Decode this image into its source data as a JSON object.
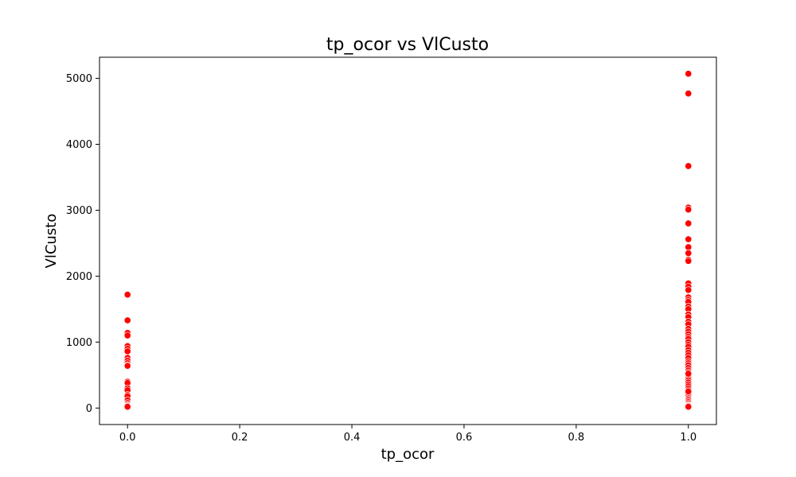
{
  "chart_data": {
    "type": "scatter",
    "title": "tp_ocor vs VlCusto",
    "xlabel": "tp_ocor",
    "ylabel": "VlCusto",
    "xlim": [
      -0.05,
      1.05
    ],
    "ylim": [
      -250,
      5320
    ],
    "xticks": [
      "0.0",
      "0.2",
      "0.4",
      "0.6",
      "0.8",
      "1.0"
    ],
    "xtick_values": [
      0,
      0.2,
      0.4,
      0.6,
      0.8,
      1.0
    ],
    "yticks": [
      "0",
      "1000",
      "2000",
      "3000",
      "4000",
      "5000"
    ],
    "ytick_values": [
      0,
      1000,
      2000,
      3000,
      4000,
      5000
    ],
    "grid": false,
    "marker_color": "#ff0000",
    "marker_edge": "#ffffff",
    "series": [
      {
        "x": [
          0,
          0,
          0,
          0,
          0,
          0,
          0,
          0,
          0,
          0,
          0,
          0,
          0,
          0,
          0,
          0,
          0,
          0,
          0,
          0,
          0,
          0,
          0,
          0
        ],
        "y": [
          1720,
          1330,
          1140,
          1100,
          940,
          900,
          860,
          760,
          720,
          680,
          650,
          640,
          400,
          380,
          300,
          270,
          200,
          180,
          120,
          80,
          60,
          40,
          30,
          20
        ]
      },
      {
        "x": [
          1,
          1,
          1,
          1,
          1,
          1,
          1,
          1,
          1,
          1,
          1,
          1,
          1,
          1,
          1,
          1,
          1,
          1,
          1,
          1,
          1,
          1,
          1,
          1,
          1,
          1,
          1,
          1,
          1,
          1,
          1,
          1,
          1,
          1,
          1,
          1,
          1,
          1,
          1,
          1,
          1,
          1,
          1,
          1,
          1,
          1,
          1,
          1,
          1,
          1,
          1,
          1,
          1,
          1,
          1,
          1,
          1,
          1,
          1,
          1,
          1,
          1,
          1,
          1
        ],
        "y": [
          5070,
          4770,
          3670,
          3040,
          3010,
          2800,
          2560,
          2440,
          2350,
          2250,
          2230,
          1890,
          1840,
          1790,
          1680,
          1640,
          1610,
          1540,
          1500,
          1420,
          1380,
          1310,
          1270,
          1200,
          1160,
          1120,
          1080,
          1050,
          1000,
          960,
          930,
          880,
          840,
          800,
          760,
          710,
          680,
          650,
          610,
          570,
          540,
          510,
          480,
          450,
          420,
          390,
          360,
          330,
          300,
          270,
          240,
          210,
          180,
          150,
          130,
          110,
          90,
          70,
          50,
          40,
          30,
          20,
          250,
          520
        ]
      }
    ]
  }
}
